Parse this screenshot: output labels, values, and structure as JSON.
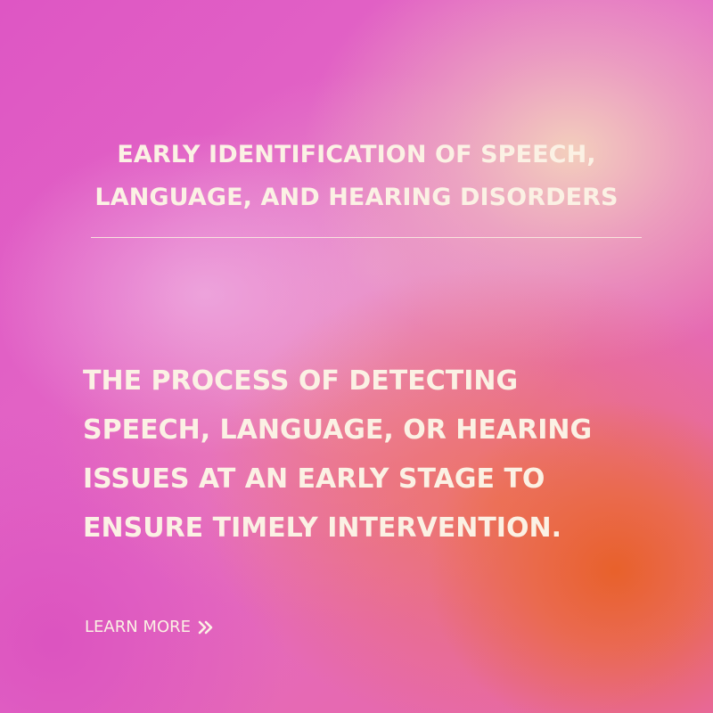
{
  "card": {
    "heading_lines": [
      "EARLY IDENTIFICATION OF SPEECH,",
      "LANGUAGE, AND HEARING DISORDERS"
    ],
    "description_lines": [
      "THE PROCESS OF DETECTING",
      "SPEECH, LANGUAGE, OR HEARING",
      "ISSUES AT AN EARLY STAGE TO",
      "ENSURE TIMELY INTERVENTION."
    ],
    "cta": {
      "label": "LEARN MORE",
      "icon": "double-chevron-right-icon"
    }
  },
  "colors": {
    "text": "#fbf1e4",
    "background_pink": "#e25bc2",
    "background_orange": "#e86026",
    "background_peach": "#f4d4bc"
  }
}
